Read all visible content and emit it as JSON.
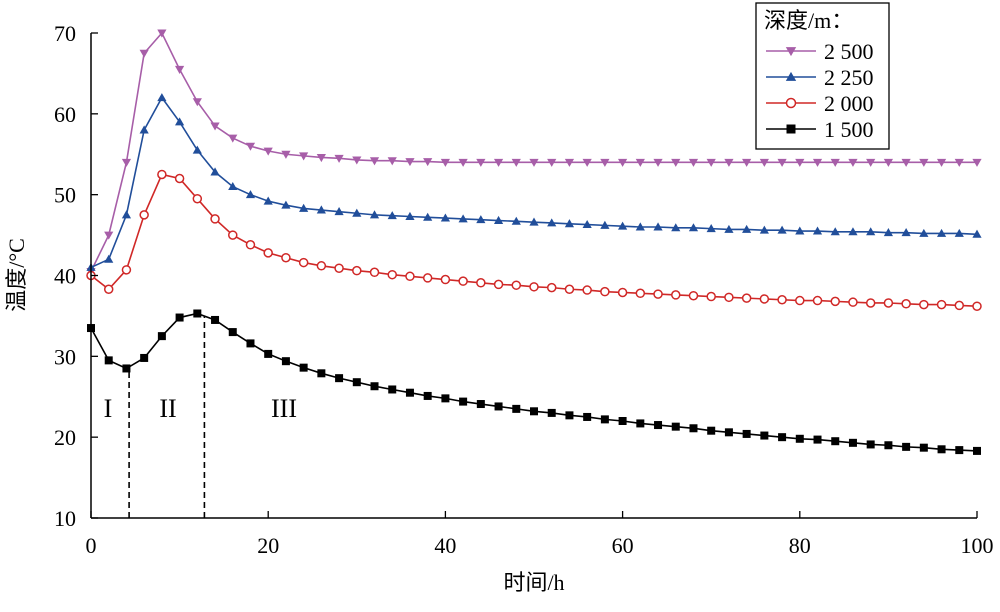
{
  "chart_data": {
    "type": "line",
    "xlabel": "时间/h",
    "ylabel": "温度/°C",
    "xlim": [
      0,
      100
    ],
    "ylim": [
      10,
      70
    ],
    "xticks": [
      0,
      20,
      40,
      60,
      80,
      100
    ],
    "yticks": [
      10,
      20,
      30,
      40,
      50,
      60,
      70
    ],
    "x_tick_labels": [
      "0",
      "20",
      "40",
      "60",
      "80",
      "100"
    ],
    "y_tick_labels": [
      "10",
      "20",
      "30",
      "40",
      "50",
      "60",
      "70"
    ],
    "grid": false,
    "legend": {
      "title": "深度/m：",
      "placement": "top-right",
      "entries": [
        "2 500",
        "2 250",
        "2 000",
        "1 500"
      ]
    },
    "x": [
      0,
      2,
      4,
      6,
      8,
      10,
      12,
      14,
      16,
      18,
      20,
      22,
      24,
      26,
      28,
      30,
      32,
      34,
      36,
      38,
      40,
      42,
      44,
      46,
      48,
      50,
      52,
      54,
      56,
      58,
      60,
      62,
      64,
      66,
      68,
      70,
      72,
      74,
      76,
      78,
      80,
      82,
      84,
      86,
      88,
      90,
      92,
      94,
      96,
      98,
      100
    ],
    "series": [
      {
        "name": "2 500",
        "color": "#a75ea8",
        "marker": "triangle-down",
        "values": [
          40.5,
          45,
          54,
          67.5,
          70,
          65.5,
          61.5,
          58.5,
          57,
          56,
          55.4,
          55,
          54.8,
          54.6,
          54.5,
          54.3,
          54.2,
          54.2,
          54.1,
          54.1,
          54,
          54,
          54,
          54,
          54,
          54,
          54,
          54,
          54,
          54,
          54,
          54,
          54,
          54,
          54,
          54,
          54,
          54,
          54,
          54,
          54,
          54,
          54,
          54,
          54,
          54,
          54,
          54,
          54,
          54,
          54
        ]
      },
      {
        "name": "2 250",
        "color": "#214e9a",
        "marker": "triangle-up",
        "values": [
          41,
          42,
          47.5,
          58,
          62,
          59,
          55.5,
          52.8,
          51,
          50,
          49.2,
          48.7,
          48.3,
          48.1,
          47.9,
          47.7,
          47.5,
          47.4,
          47.3,
          47.2,
          47.1,
          47,
          46.9,
          46.8,
          46.7,
          46.6,
          46.5,
          46.4,
          46.3,
          46.2,
          46.1,
          46,
          46,
          45.9,
          45.9,
          45.8,
          45.7,
          45.7,
          45.6,
          45.6,
          45.5,
          45.5,
          45.4,
          45.4,
          45.4,
          45.3,
          45.3,
          45.2,
          45.2,
          45.2,
          45.1
        ]
      },
      {
        "name": "2 000",
        "color": "#d02827",
        "marker": "circle-open",
        "values": [
          40,
          38.3,
          40.7,
          47.5,
          52.5,
          52,
          49.5,
          47,
          45,
          43.8,
          42.8,
          42.2,
          41.6,
          41.2,
          40.9,
          40.6,
          40.4,
          40.1,
          39.9,
          39.7,
          39.5,
          39.3,
          39.1,
          38.9,
          38.8,
          38.6,
          38.5,
          38.3,
          38.2,
          38,
          37.9,
          37.8,
          37.7,
          37.6,
          37.5,
          37.4,
          37.3,
          37.2,
          37.1,
          37,
          36.9,
          36.9,
          36.8,
          36.7,
          36.6,
          36.6,
          36.5,
          36.4,
          36.4,
          36.3,
          36.2
        ]
      },
      {
        "name": "1 500",
        "color": "#000000",
        "marker": "square",
        "values": [
          33.5,
          29.5,
          28.5,
          29.8,
          32.5,
          34.8,
          35.3,
          34.5,
          33,
          31.6,
          30.3,
          29.4,
          28.6,
          27.9,
          27.3,
          26.8,
          26.3,
          25.9,
          25.5,
          25.1,
          24.8,
          24.4,
          24.1,
          23.8,
          23.5,
          23.2,
          23,
          22.7,
          22.5,
          22.2,
          22,
          21.7,
          21.5,
          21.3,
          21.1,
          20.8,
          20.6,
          20.4,
          20.2,
          20,
          19.8,
          19.7,
          19.5,
          19.3,
          19.1,
          19,
          18.8,
          18.7,
          18.5,
          18.4,
          18.3
        ]
      }
    ],
    "phase_markers": {
      "dashed_x": [
        4.3,
        12.8
      ],
      "labels": [
        "I",
        "II",
        "III"
      ]
    }
  }
}
